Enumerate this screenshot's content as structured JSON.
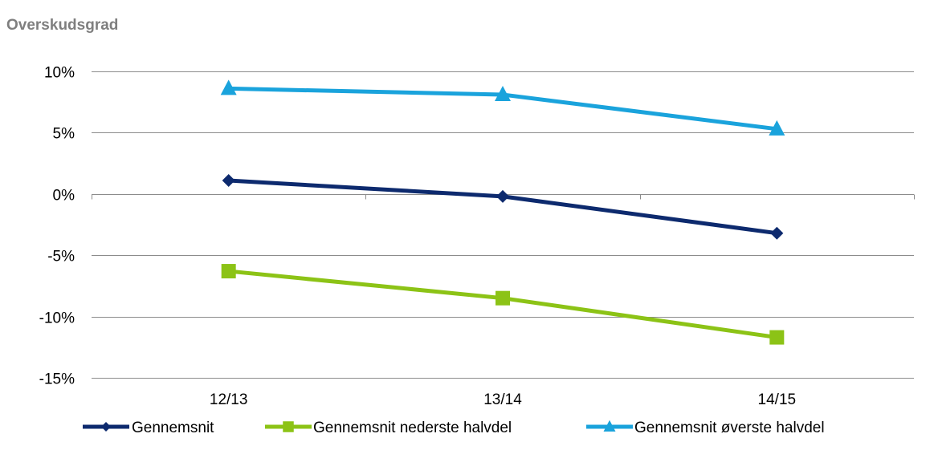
{
  "chart_data": {
    "type": "line",
    "title": "Overskudsgrad",
    "categories": [
      "12/13",
      "13/14",
      "14/15"
    ],
    "ylim": [
      -15,
      10
    ],
    "yticks": [
      10,
      5,
      0,
      -5,
      -10,
      -15
    ],
    "ytick_labels": [
      "10%",
      "5%",
      "0%",
      "-5%",
      "-10%",
      "-15%"
    ],
    "grid": true,
    "legend_position": "bottom",
    "series": [
      {
        "name": "Gennemsnit",
        "values": [
          1.1,
          -0.2,
          -3.2
        ],
        "color": "#0d2a6e",
        "marker": "diamond"
      },
      {
        "name": "Gennemsnit nederste halvdel",
        "values": [
          -6.3,
          -8.5,
          -11.7
        ],
        "color": "#8cc316",
        "marker": "square"
      },
      {
        "name": "Gennemsnit øverste halvdel",
        "values": [
          8.6,
          8.1,
          5.3
        ],
        "color": "#1aa3dc",
        "marker": "triangle"
      }
    ]
  }
}
